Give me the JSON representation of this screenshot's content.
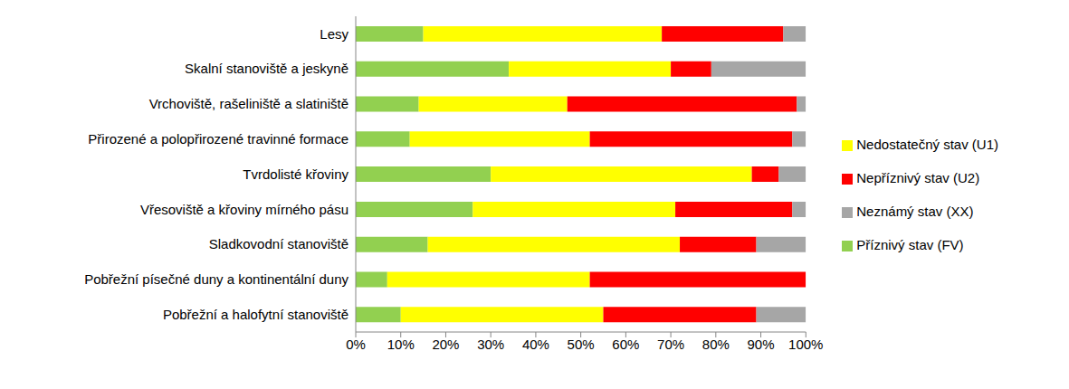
{
  "chart_data": {
    "type": "bar",
    "orientation": "horizontal",
    "stacked": true,
    "legend": "right",
    "grid": false,
    "categories": [
      "Lesy",
      "Skalní stanoviště a jeskyně",
      "Vrchoviště, rašeliniště a slatiniště",
      "Přirozené a polopřirozené travinné formace",
      "Tvrdolisté křoviny",
      "Vřesoviště a křoviny mírného pásu",
      "Sladkovodní stanoviště",
      "Pobřežní písečné duny a kontinentální duny",
      "Pobřežní a halofytní stanoviště"
    ],
    "series": [
      {
        "name": "Příznivý stav (FV)",
        "color": "#92D050",
        "values": [
          15,
          34,
          14,
          12,
          30,
          26,
          16,
          7,
          10
        ]
      },
      {
        "name": "Nedostatečný stav (U1)",
        "color": "#FFFF00",
        "values": [
          53,
          36,
          33,
          40,
          58,
          45,
          56,
          45,
          45
        ]
      },
      {
        "name": "Nepříznivý stav (U2)",
        "color": "#FF0000",
        "values": [
          27,
          9,
          51,
          45,
          6,
          26,
          17,
          48,
          34
        ]
      },
      {
        "name": "Neznámý stav (XX)",
        "color": "#A6A6A6",
        "values": [
          5,
          21,
          2,
          3,
          6,
          3,
          11,
          0,
          11
        ]
      }
    ],
    "xlim": [
      0,
      100
    ],
    "xticks": [
      {
        "value": 0,
        "label": "0%"
      },
      {
        "value": 10,
        "label": "10%"
      },
      {
        "value": 20,
        "label": "20%"
      },
      {
        "value": 30,
        "label": "30%"
      },
      {
        "value": 40,
        "label": "40%"
      },
      {
        "value": 50,
        "label": "50%"
      },
      {
        "value": 60,
        "label": "60%"
      },
      {
        "value": 70,
        "label": "70%"
      },
      {
        "value": 80,
        "label": "80%"
      },
      {
        "value": 90,
        "label": "90%"
      },
      {
        "value": 100,
        "label": "100%"
      }
    ]
  }
}
